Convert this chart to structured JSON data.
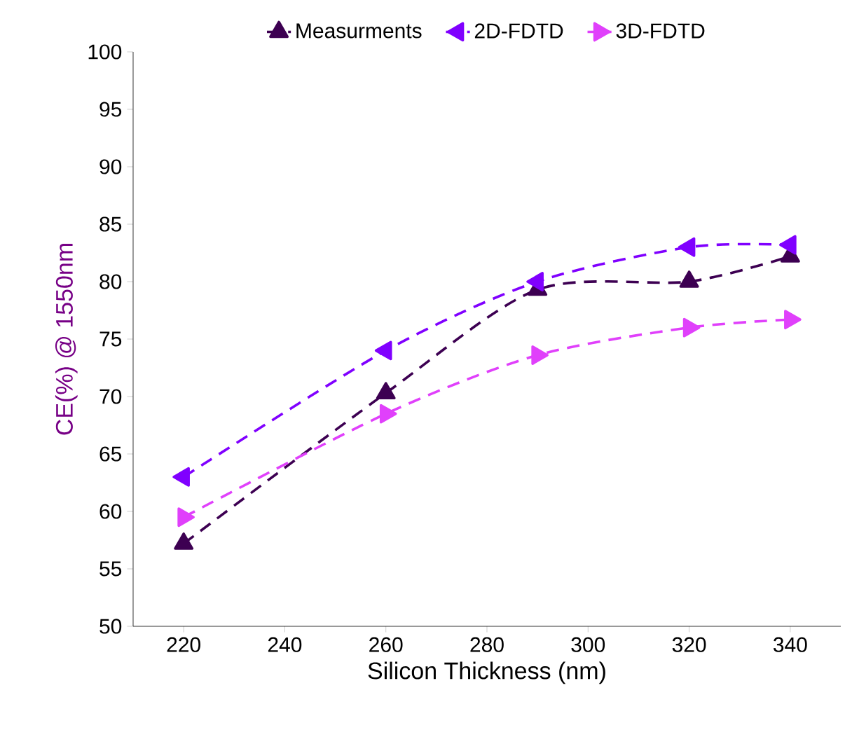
{
  "chart_data": {
    "type": "line",
    "xlabel": "Silicon Thickness (nm)",
    "ylabel": "CE(%) @ 1550nm",
    "x": [
      220,
      260,
      290,
      320,
      340
    ],
    "series": [
      {
        "name": "Measurments",
        "color": "#3d0052",
        "marker": "triangle",
        "values": [
          57.2,
          70.3,
          79.3,
          80.0,
          82.2
        ]
      },
      {
        "name": "2D-FDTD",
        "color": "#8000ff",
        "marker": "triangle",
        "values": [
          63.0,
          74.0,
          80.0,
          83.0,
          83.2
        ]
      },
      {
        "name": "3D-FDTD",
        "color": "#e040fb",
        "marker": "triangle",
        "values": [
          59.5,
          68.5,
          73.6,
          76.0,
          76.7
        ]
      }
    ],
    "xlim": [
      210,
      350
    ],
    "ylim": [
      50,
      100
    ],
    "xticks": [
      220,
      240,
      260,
      280,
      300,
      320,
      340
    ],
    "yticks": [
      50,
      55,
      60,
      65,
      70,
      75,
      80,
      85,
      90,
      95,
      100
    ],
    "line_style": "dashed",
    "legend": "top",
    "grid": false
  }
}
